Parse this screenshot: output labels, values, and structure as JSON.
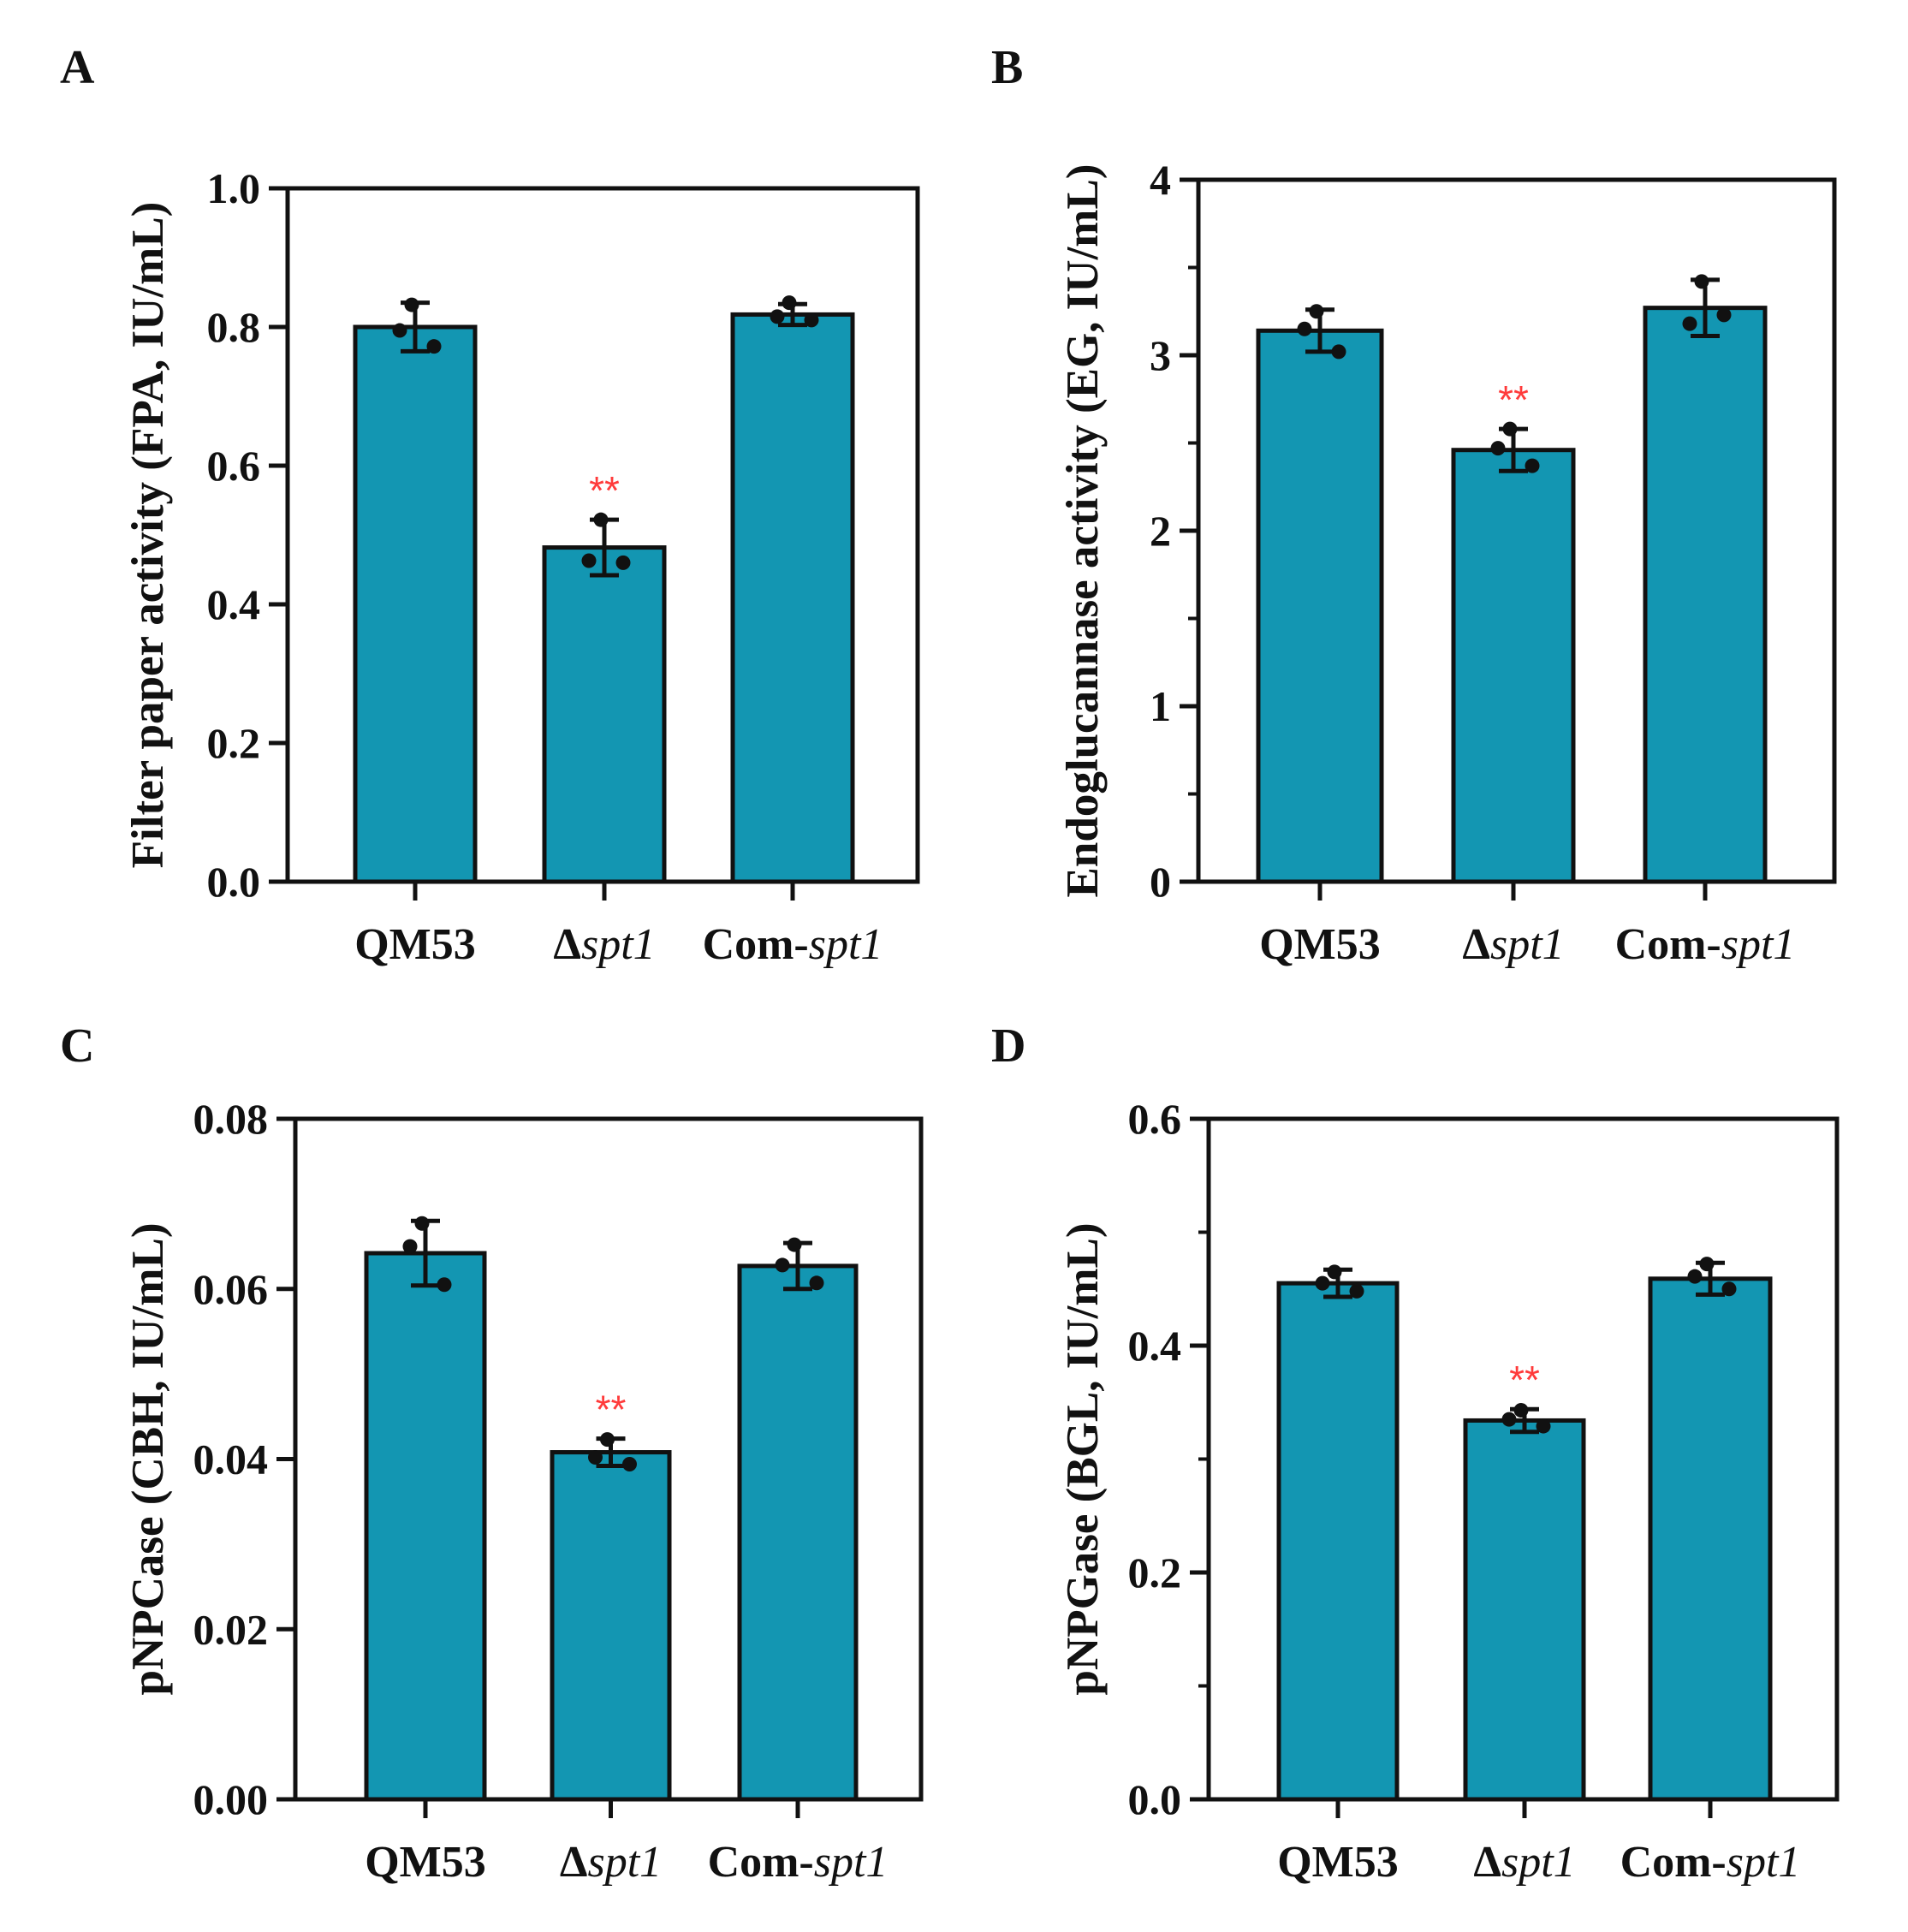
{
  "bar_color": "#1396b2",
  "axis_color": "#111111",
  "significance_color": "#ff3b3b",
  "delta_symbol": "Δ",
  "chart_data": [
    {
      "panel": "A",
      "type": "bar",
      "categories": [
        {
          "prefix": "QM53",
          "italic": ""
        },
        {
          "prefix": "",
          "italic": "spt1"
        },
        {
          "prefix": "Com-",
          "italic": "spt1"
        }
      ],
      "values": [
        0.8,
        0.482,
        0.818
      ],
      "errors": [
        0.035,
        0.04,
        0.015
      ],
      "points": [
        [
          0.832,
          0.795,
          0.772
        ],
        [
          0.522,
          0.463,
          0.46
        ],
        [
          0.835,
          0.815,
          0.81
        ]
      ],
      "significance": [
        "",
        "**",
        ""
      ],
      "ylabel": "Filter paper activity (FPA, IU/mL)",
      "ylim": [
        0,
        1.0
      ],
      "ticks": [
        "0.0",
        "0.2",
        "0.4",
        "0.6",
        "0.8",
        "1.0"
      ],
      "tick_values": [
        0,
        0.2,
        0.4,
        0.6,
        0.8,
        1.0
      ],
      "minor_ticks": false
    },
    {
      "panel": "B",
      "type": "bar",
      "categories": [
        {
          "prefix": "QM53",
          "italic": ""
        },
        {
          "prefix": "",
          "italic": "spt1"
        },
        {
          "prefix": "Com-",
          "italic": "spt1"
        }
      ],
      "values": [
        3.14,
        2.46,
        3.27
      ],
      "errors": [
        0.12,
        0.12,
        0.16
      ],
      "points": [
        [
          3.25,
          3.15,
          3.02
        ],
        [
          2.58,
          2.47,
          2.37
        ],
        [
          3.42,
          3.18,
          3.23
        ]
      ],
      "significance": [
        "",
        "**",
        ""
      ],
      "ylabel": "Endoglucannase activity (EG, IU/mL)",
      "ylim": [
        0,
        4
      ],
      "ticks": [
        "0",
        "1",
        "2",
        "3",
        "4"
      ],
      "tick_values": [
        0,
        1,
        2,
        3,
        4
      ],
      "minor_ticks": true
    },
    {
      "panel": "C",
      "type": "bar",
      "categories": [
        {
          "prefix": "QM53",
          "italic": ""
        },
        {
          "prefix": "",
          "italic": "spt1"
        },
        {
          "prefix": "Com-",
          "italic": "spt1"
        }
      ],
      "values": [
        0.0642,
        0.0408,
        0.0627
      ],
      "errors": [
        0.0038,
        0.0016,
        0.0027
      ],
      "points": [
        [
          0.0677,
          0.065,
          0.0605
        ],
        [
          0.0423,
          0.0402,
          0.0394
        ],
        [
          0.0652,
          0.0628,
          0.0607
        ]
      ],
      "significance": [
        "",
        "**",
        ""
      ],
      "ylabel": "pNPCase (CBH, IU/mL)",
      "ylim": [
        0,
        0.08
      ],
      "ticks": [
        "0.00",
        "0.02",
        "0.04",
        "0.06",
        "0.08"
      ],
      "tick_values": [
        0,
        0.02,
        0.04,
        0.06,
        0.08
      ],
      "minor_ticks": false
    },
    {
      "panel": "D",
      "type": "bar",
      "categories": [
        {
          "prefix": "QM53",
          "italic": ""
        },
        {
          "prefix": "",
          "italic": "spt1"
        },
        {
          "prefix": "Com-",
          "italic": "spt1"
        }
      ],
      "values": [
        0.455,
        0.334,
        0.459
      ],
      "errors": [
        0.012,
        0.01,
        0.014
      ],
      "points": [
        [
          0.465,
          0.455,
          0.448
        ],
        [
          0.343,
          0.335,
          0.329
        ],
        [
          0.472,
          0.461,
          0.45
        ]
      ],
      "significance": [
        "",
        "**",
        ""
      ],
      "ylabel": "pNPGase (BGL, IU/mL)",
      "ylim": [
        0,
        0.6
      ],
      "ticks": [
        "0.0",
        "0.2",
        "0.4",
        "0.6"
      ],
      "tick_values": [
        0,
        0.2,
        0.4,
        0.6
      ],
      "minor_ticks": true
    }
  ]
}
